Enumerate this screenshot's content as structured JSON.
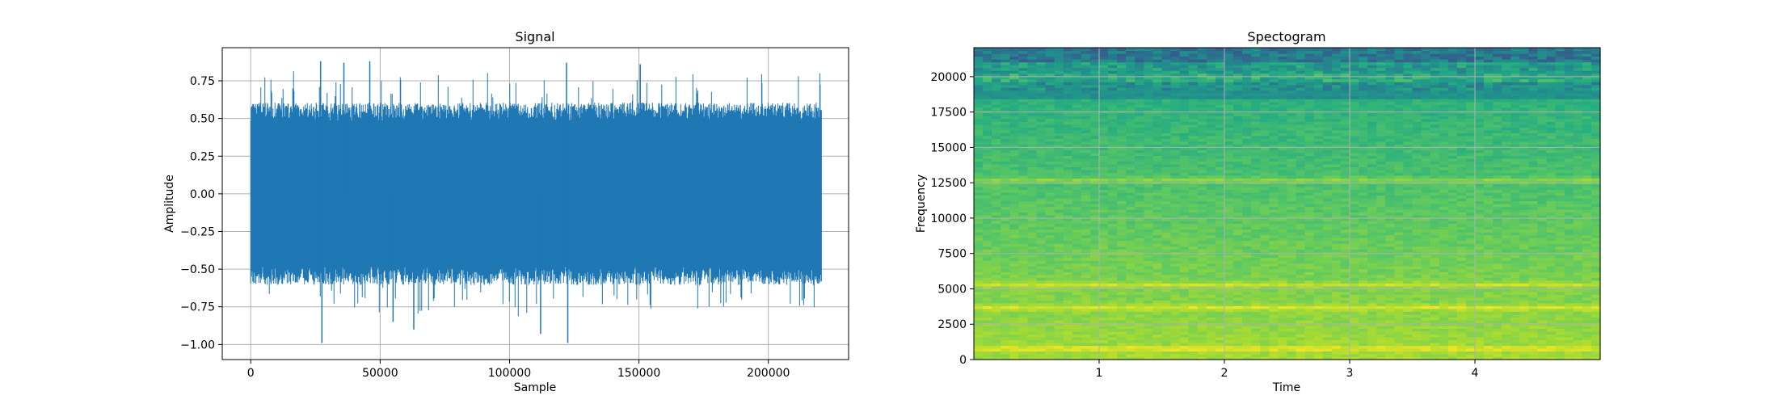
{
  "chart_data": [
    {
      "type": "line",
      "title": "Signal",
      "xlabel": "Sample",
      "ylabel": "Amplitude",
      "xlim": [
        -11000,
        231000
      ],
      "ylim": [
        -1.1,
        0.97
      ],
      "xticks": [
        0,
        50000,
        100000,
        150000,
        200000
      ],
      "xtick_labels": [
        "0",
        "50000",
        "100000",
        "150000",
        "200000"
      ],
      "yticks": [
        -1.0,
        -0.75,
        -0.5,
        -0.25,
        0.0,
        0.25,
        0.5,
        0.75
      ],
      "ytick_labels": [
        "−1.00",
        "−0.75",
        "−0.50",
        "−0.25",
        "0.00",
        "0.25",
        "0.50",
        "0.75"
      ],
      "grid": true,
      "color": "#1f77b4",
      "series": [
        {
          "name": "signal",
          "x_start": 0,
          "x_end": 220500,
          "typical_max": 0.55,
          "typical_min": -0.55,
          "peaks": [
            {
              "x": 27000,
              "value": 0.88
            },
            {
              "x": 36000,
              "value": 0.87
            },
            {
              "x": 46000,
              "value": 0.88
            },
            {
              "x": 122000,
              "value": 0.87
            },
            {
              "x": 150500,
              "value": 0.86
            },
            {
              "x": 27500,
              "value": -0.99
            },
            {
              "x": 63000,
              "value": -0.9
            },
            {
              "x": 112000,
              "value": -0.93
            },
            {
              "x": 122500,
              "value": -0.99
            },
            {
              "x": 55000,
              "value": -0.85
            }
          ]
        }
      ]
    },
    {
      "type": "heatmap",
      "title": "Spectogram",
      "xlabel": "Time",
      "ylabel": "Frequency",
      "xlim": [
        0,
        5
      ],
      "ylim": [
        0,
        22050
      ],
      "xticks": [
        1,
        2,
        3,
        4
      ],
      "xtick_labels": [
        "1",
        "2",
        "3",
        "4"
      ],
      "yticks": [
        0,
        2500,
        5000,
        7500,
        10000,
        12500,
        15000,
        17500,
        20000
      ],
      "ytick_labels": [
        "0",
        "2500",
        "5000",
        "7500",
        "10000",
        "12500",
        "15000",
        "17500",
        "20000"
      ],
      "grid": true,
      "colormap": "viridis",
      "bright_bands_hz": [
        5300,
        12700,
        3700,
        800
      ],
      "dark_bands_hz": [
        19000,
        20500,
        21500
      ]
    }
  ]
}
